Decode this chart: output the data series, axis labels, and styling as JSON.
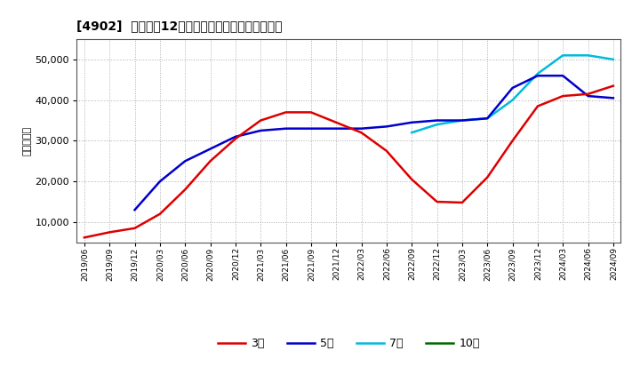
{
  "title": "[4902]  経常利益12か月移動合計の標準偏差の推移",
  "ylabel": "（百万円）",
  "ylim": [
    5000,
    55000
  ],
  "yticks": [
    10000,
    20000,
    30000,
    40000,
    50000
  ],
  "background_color": "#ffffff",
  "grid_color": "#999999",
  "legend_labels": [
    "3年",
    "5年",
    "7年",
    "10年"
  ],
  "legend_colors": [
    "#dd0000",
    "#0000cc",
    "#00bbdd",
    "#006600"
  ],
  "x_labels": [
    "2019/06",
    "2019/09",
    "2019/12",
    "2020/03",
    "2020/06",
    "2020/09",
    "2020/12",
    "2021/03",
    "2021/06",
    "2021/09",
    "2021/12",
    "2022/03",
    "2022/06",
    "2022/09",
    "2022/12",
    "2023/03",
    "2023/06",
    "2023/09",
    "2023/12",
    "2024/03",
    "2024/06",
    "2024/09"
  ],
  "series_3y": [
    6200,
    7500,
    8500,
    12000,
    18000,
    25000,
    30500,
    35000,
    37000,
    37000,
    34500,
    32000,
    27500,
    20500,
    15000,
    14800,
    21000,
    30000,
    38500,
    41000,
    41500,
    43500
  ],
  "series_5y": [
    null,
    null,
    13000,
    20000,
    25000,
    28000,
    31000,
    32500,
    33000,
    33000,
    33000,
    33000,
    33500,
    34500,
    35000,
    35000,
    35500,
    43000,
    46000,
    46000,
    41000,
    40500
  ],
  "series_7y": [
    null,
    null,
    null,
    null,
    null,
    null,
    null,
    null,
    null,
    null,
    null,
    null,
    null,
    32000,
    34000,
    35000,
    35500,
    40000,
    46500,
    51000,
    51000,
    50000
  ],
  "series_10y": [
    null,
    null,
    null,
    null,
    null,
    null,
    null,
    null,
    null,
    null,
    null,
    null,
    null,
    null,
    null,
    null,
    null,
    null,
    null,
    null,
    null,
    null
  ]
}
